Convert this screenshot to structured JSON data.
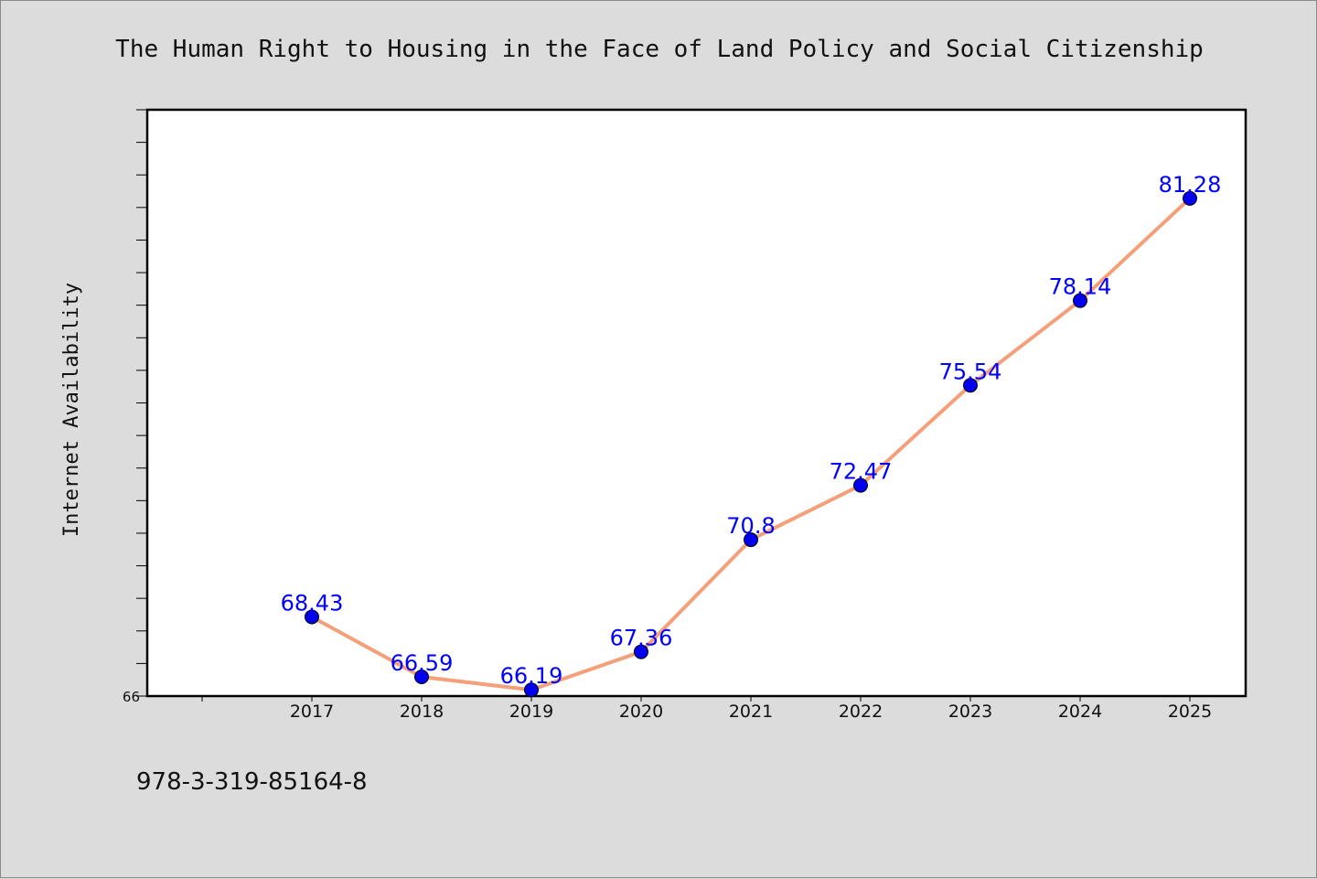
{
  "chart_data": {
    "type": "line",
    "title": "The Human Right to Housing in the Face of Land Policy and Social Citizenship",
    "ylabel": "Internet Availability",
    "xlabel": "",
    "categories": [
      "2017",
      "2018",
      "2019",
      "2020",
      "2021",
      "2022",
      "2023",
      "2024",
      "2025"
    ],
    "series": [
      {
        "values": [
          68.43,
          66.59,
          66.19,
          67.36,
          70.8,
          72.47,
          75.54,
          78.14,
          81.28
        ]
      }
    ],
    "data_labels": [
      "68.43",
      "66.59",
      "66.19",
      "67.36",
      "70.8",
      "72.47",
      "75.54",
      "78.14",
      "81.28"
    ],
    "ylim": [
      66,
      84
    ],
    "y_tick_labels": [
      "66"
    ],
    "grid": false,
    "colors": {
      "line": "#f4a07a",
      "marker": "#0000ee",
      "label": "#0000ff",
      "background": "#dcdcdc",
      "plot_background": "#ffffff"
    }
  },
  "footer": {
    "isbn": "978-3-319-85164-8"
  }
}
